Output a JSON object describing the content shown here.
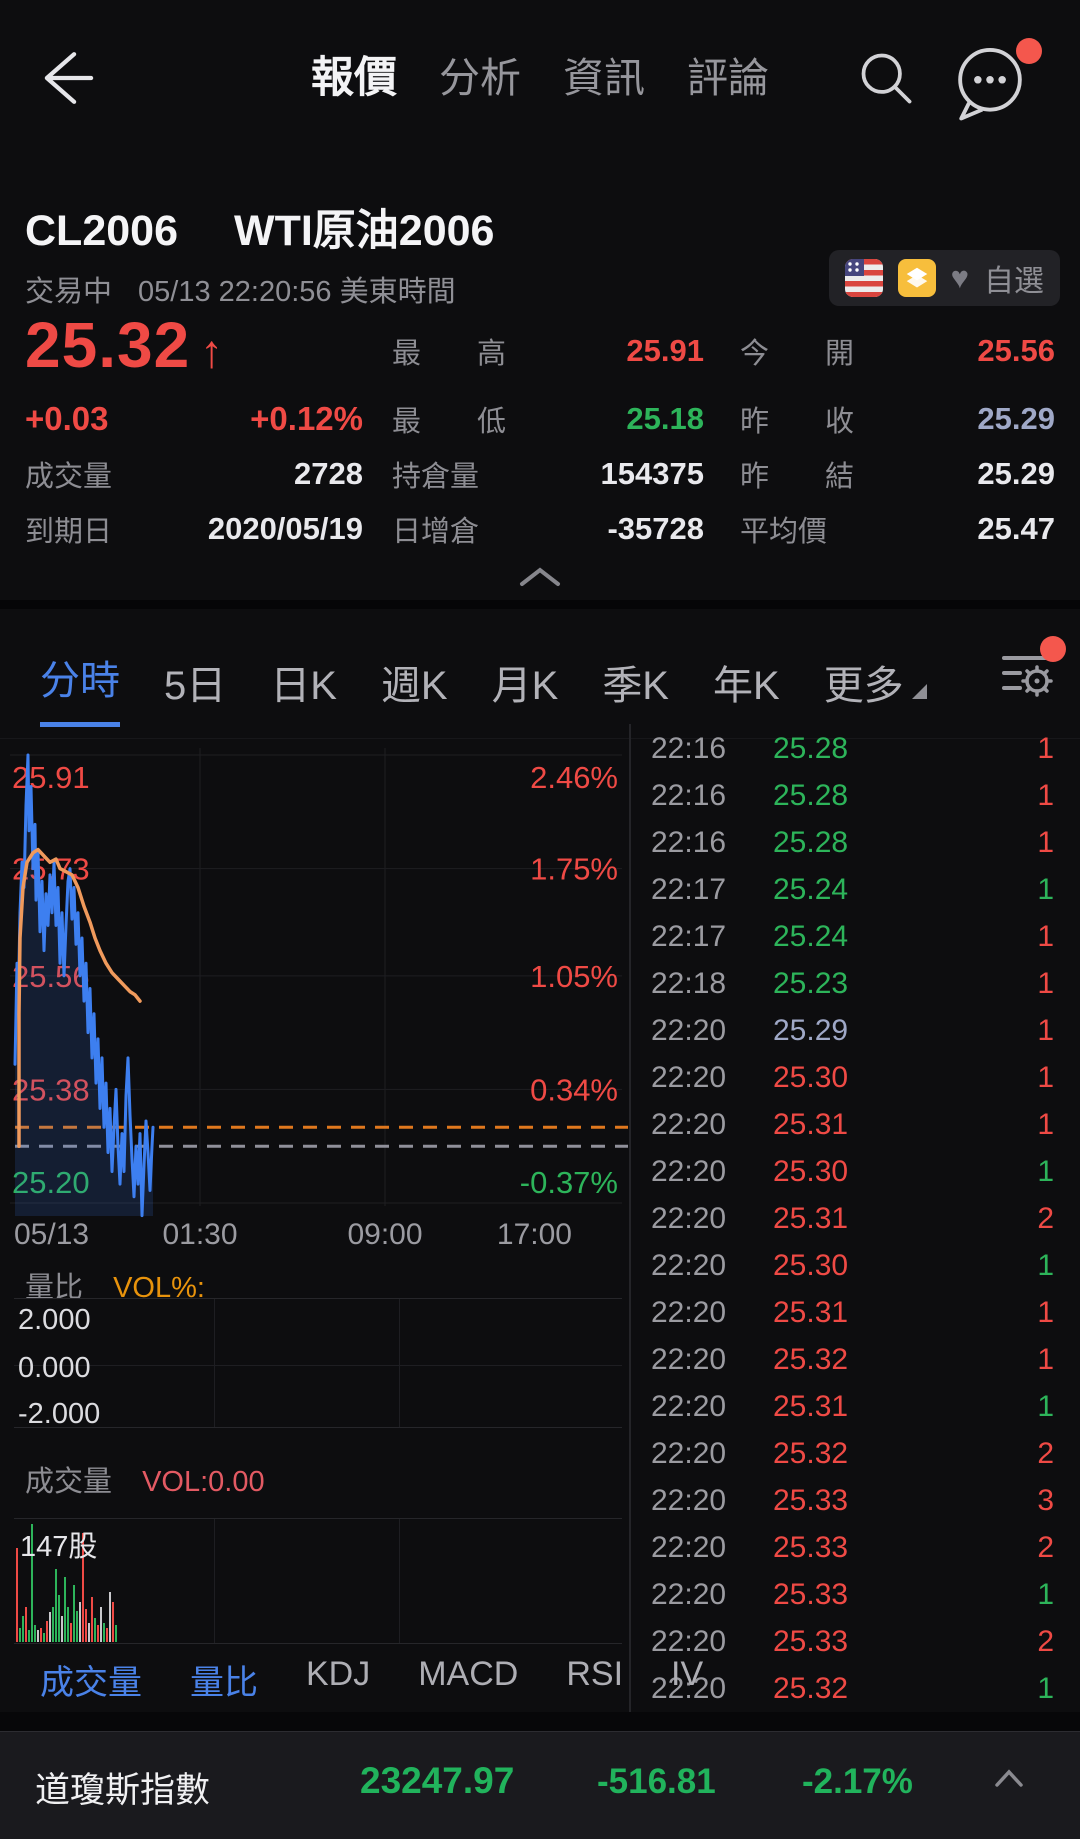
{
  "colors": {
    "r": "#ef4a45",
    "g": "#2db45a",
    "b": "#9fa8c7",
    "w": "#e9e9ed",
    "accent_blue": "#4a82e8",
    "orange": "#e8930c",
    "vol_red": "#e35a63",
    "price_line": "#3d7ff0",
    "avg_line": "#f09a5c",
    "dashed_orange": "#e0781e",
    "dashed_gray": "#90909a",
    "index_green": "#21b35c",
    "bar_gray": "#c8c8cc"
  },
  "header": {
    "tabs": [
      {
        "label": "報價",
        "active": true
      },
      {
        "label": "分析",
        "active": false
      },
      {
        "label": "資訊",
        "active": false
      },
      {
        "label": "評論",
        "active": false
      }
    ]
  },
  "title": {
    "code": "CL2006",
    "name": "WTI原油2006"
  },
  "status": {
    "state": "交易中",
    "datetime": "05/13 22:20:56 美東時間",
    "watchlist_label": "自選"
  },
  "quote": {
    "last": "25.32",
    "direction_icon": "↑",
    "change": "+0.03",
    "change_pct": "+0.12%",
    "fields": [
      {
        "col": 2,
        "row": 1,
        "label": "最高",
        "value": "25.91",
        "color": "r",
        "justify": true
      },
      {
        "col": 3,
        "row": 1,
        "label": "今開",
        "value": "25.56",
        "color": "r",
        "justify": true
      },
      {
        "col": 2,
        "row": 2,
        "label": "最低",
        "value": "25.18",
        "color": "g",
        "justify": true
      },
      {
        "col": 3,
        "row": 2,
        "label": "昨收",
        "value": "25.29",
        "color": "b",
        "justify": true
      },
      {
        "col": 1,
        "row": 3,
        "label": "成交量",
        "value": "2728",
        "color": "w",
        "justify": false
      },
      {
        "col": 2,
        "row": 3,
        "label": "持倉量",
        "value": "154375",
        "color": "w",
        "justify": false
      },
      {
        "col": 3,
        "row": 3,
        "label": "昨結",
        "value": "25.29",
        "color": "w",
        "justify": true
      },
      {
        "col": 1,
        "row": 4,
        "label": "到期日",
        "value": "2020/05/19",
        "color": "w",
        "justify": false
      },
      {
        "col": 2,
        "row": 4,
        "label": "日增倉",
        "value": "-35728",
        "color": "w",
        "justify": false
      },
      {
        "col": 3,
        "row": 4,
        "label": "平均價",
        "value": "25.47",
        "color": "w",
        "justify": false
      }
    ]
  },
  "chart_tabs": [
    {
      "label": "分時",
      "active": true,
      "caret": false
    },
    {
      "label": "5日",
      "active": false,
      "caret": false
    },
    {
      "label": "日K",
      "active": false,
      "caret": false
    },
    {
      "label": "週K",
      "active": false,
      "caret": false
    },
    {
      "label": "月K",
      "active": false,
      "caret": false
    },
    {
      "label": "季K",
      "active": false,
      "caret": false
    },
    {
      "label": "年K",
      "active": false,
      "caret": false
    },
    {
      "label": "更多",
      "active": false,
      "caret": true
    }
  ],
  "chart_data": [
    {
      "type": "line",
      "name": "intraday-price-chart",
      "x_axis": [
        "05/13",
        "01:30",
        "09:00",
        "17:00"
      ],
      "y_axis": [
        {
          "price": 25.91,
          "label": "25.91",
          "color": "r"
        },
        {
          "price": 25.73,
          "label": "25.73",
          "color": "r"
        },
        {
          "price": 25.56,
          "label": "25.56",
          "color": "r"
        },
        {
          "price": 25.38,
          "label": "25.38",
          "color": "r"
        },
        {
          "price": 25.2,
          "label": "25.20",
          "color": "g"
        }
      ],
      "right_axis": [
        {
          "label": "2.46%",
          "color": "r"
        },
        {
          "label": "1.75%",
          "color": "r"
        },
        {
          "label": "1.05%",
          "color": "r"
        },
        {
          "label": "0.34%",
          "color": "r"
        },
        {
          "label": "-0.37%",
          "color": "g"
        }
      ],
      "reference_lines": [
        {
          "price": 25.32,
          "meaning": "last-price",
          "colorKey": "dashed_orange"
        },
        {
          "price": 25.29,
          "meaning": "prev-settle",
          "colorKey": "dashed_gray"
        }
      ],
      "series": [
        {
          "name": "price",
          "colorKey": "price_line",
          "fill": true,
          "points": [
            [
              15,
              25.42
            ],
            [
              17,
              25.58
            ],
            [
              18,
              25.5
            ],
            [
              20,
              25.66
            ],
            [
              22,
              25.74
            ],
            [
              24,
              25.7
            ],
            [
              26,
              25.83
            ],
            [
              28,
              25.91
            ],
            [
              29,
              25.79
            ],
            [
              31,
              25.86
            ],
            [
              33,
              25.73
            ],
            [
              35,
              25.8
            ],
            [
              36,
              25.68
            ],
            [
              38,
              25.76
            ],
            [
              40,
              25.63
            ],
            [
              42,
              25.71
            ],
            [
              44,
              25.6
            ],
            [
              46,
              25.69
            ],
            [
              48,
              25.64
            ],
            [
              50,
              25.72
            ],
            [
              52,
              25.66
            ],
            [
              54,
              25.74
            ],
            [
              56,
              25.64
            ],
            [
              58,
              25.7
            ],
            [
              60,
              25.58
            ],
            [
              62,
              25.66
            ],
            [
              64,
              25.56
            ],
            [
              66,
              25.64
            ],
            [
              68,
              25.71
            ],
            [
              70,
              25.73
            ],
            [
              72,
              25.65
            ],
            [
              74,
              25.7
            ],
            [
              76,
              25.61
            ],
            [
              78,
              25.66
            ],
            [
              80,
              25.56
            ],
            [
              82,
              25.62
            ],
            [
              84,
              25.52
            ],
            [
              86,
              25.58
            ],
            [
              88,
              25.47
            ],
            [
              90,
              25.54
            ],
            [
              92,
              25.43
            ],
            [
              94,
              25.5
            ],
            [
              96,
              25.39
            ],
            [
              98,
              25.46
            ],
            [
              100,
              25.35
            ],
            [
              102,
              25.43
            ],
            [
              104,
              25.32
            ],
            [
              106,
              25.39
            ],
            [
              108,
              25.28
            ],
            [
              110,
              25.35
            ],
            [
              112,
              25.25
            ],
            [
              114,
              25.32
            ],
            [
              116,
              25.38
            ],
            [
              118,
              25.29
            ],
            [
              120,
              25.23
            ],
            [
              122,
              25.31
            ],
            [
              124,
              25.25
            ],
            [
              126,
              25.37
            ],
            [
              128,
              25.43
            ],
            [
              130,
              25.34
            ],
            [
              132,
              25.27
            ],
            [
              134,
              25.21
            ],
            [
              136,
              25.29
            ],
            [
              138,
              25.23
            ],
            [
              140,
              25.31
            ],
            [
              142,
              25.18
            ],
            [
              144,
              25.26
            ],
            [
              146,
              25.33
            ],
            [
              148,
              25.28
            ],
            [
              150,
              25.22
            ],
            [
              152,
              25.29
            ],
            [
              153,
              25.32
            ]
          ]
        },
        {
          "name": "average",
          "colorKey": "avg_line",
          "fill": false,
          "points": [
            [
              19,
              25.29
            ],
            [
              19,
              25.5
            ],
            [
              20,
              25.62
            ],
            [
              23,
              25.7
            ],
            [
              27,
              25.74
            ],
            [
              33,
              25.755
            ],
            [
              38,
              25.76
            ],
            [
              44,
              25.75
            ],
            [
              50,
              25.74
            ],
            [
              56,
              25.745
            ],
            [
              60,
              25.73
            ],
            [
              66,
              25.725
            ],
            [
              72,
              25.72
            ],
            [
              78,
              25.7
            ],
            [
              84,
              25.67
            ],
            [
              90,
              25.645
            ],
            [
              95,
              25.62
            ],
            [
              100,
              25.6
            ],
            [
              106,
              25.58
            ],
            [
              112,
              25.565
            ],
            [
              118,
              25.555
            ],
            [
              124,
              25.545
            ],
            [
              130,
              25.535
            ],
            [
              135,
              25.53
            ],
            [
              140,
              25.52
            ]
          ]
        }
      ]
    },
    {
      "type": "line",
      "name": "volume-ratio-panel",
      "title": "量比",
      "subtitle": "VOL%:",
      "y_ticks": [
        "2.000",
        "0.000",
        "-2.000"
      ],
      "series": []
    },
    {
      "type": "bar",
      "name": "volume-panel",
      "title": "成交量",
      "subtitle": "VOL:0.00",
      "max_label": "147股",
      "bars": [
        [
          "r",
          0.8
        ],
        [
          "g",
          0.12
        ],
        [
          "g",
          0.22
        ],
        [
          "r",
          0.3
        ],
        [
          "g",
          0.1
        ],
        [
          "g",
          1.0
        ],
        [
          "g",
          0.14
        ],
        [
          "w",
          0.1
        ],
        [
          "r",
          0.12
        ],
        [
          "g",
          0.08
        ],
        [
          "r",
          0.18
        ],
        [
          "w",
          0.25
        ],
        [
          "g",
          0.3
        ],
        [
          "g",
          0.62
        ],
        [
          "g",
          0.4
        ],
        [
          "w",
          0.22
        ],
        [
          "g",
          0.55
        ],
        [
          "g",
          0.3
        ],
        [
          "r",
          0.16
        ],
        [
          "g",
          0.48
        ],
        [
          "g",
          0.26
        ],
        [
          "w",
          0.34
        ],
        [
          "r",
          0.92
        ],
        [
          "r",
          0.28
        ],
        [
          "w",
          0.16
        ],
        [
          "r",
          0.38
        ],
        [
          "g",
          0.2
        ],
        [
          "r",
          0.14
        ],
        [
          "w",
          0.3
        ],
        [
          "g",
          0.16
        ],
        [
          "r",
          0.12
        ],
        [
          "w",
          0.42
        ],
        [
          "r",
          0.34
        ],
        [
          "g",
          0.14
        ]
      ]
    }
  ],
  "trades": [
    {
      "time": "22:16",
      "price": "25.28",
      "pc": "g",
      "vol": "1",
      "vc": "r"
    },
    {
      "time": "22:16",
      "price": "25.28",
      "pc": "g",
      "vol": "1",
      "vc": "r"
    },
    {
      "time": "22:16",
      "price": "25.28",
      "pc": "g",
      "vol": "1",
      "vc": "r"
    },
    {
      "time": "22:17",
      "price": "25.24",
      "pc": "g",
      "vol": "1",
      "vc": "g"
    },
    {
      "time": "22:17",
      "price": "25.24",
      "pc": "g",
      "vol": "1",
      "vc": "r"
    },
    {
      "time": "22:18",
      "price": "25.23",
      "pc": "g",
      "vol": "1",
      "vc": "r"
    },
    {
      "time": "22:20",
      "price": "25.29",
      "pc": "b",
      "vol": "1",
      "vc": "r"
    },
    {
      "time": "22:20",
      "price": "25.30",
      "pc": "r",
      "vol": "1",
      "vc": "r"
    },
    {
      "time": "22:20",
      "price": "25.31",
      "pc": "r",
      "vol": "1",
      "vc": "r"
    },
    {
      "time": "22:20",
      "price": "25.30",
      "pc": "r",
      "vol": "1",
      "vc": "g"
    },
    {
      "time": "22:20",
      "price": "25.31",
      "pc": "r",
      "vol": "2",
      "vc": "r"
    },
    {
      "time": "22:20",
      "price": "25.30",
      "pc": "r",
      "vol": "1",
      "vc": "g"
    },
    {
      "time": "22:20",
      "price": "25.31",
      "pc": "r",
      "vol": "1",
      "vc": "r"
    },
    {
      "time": "22:20",
      "price": "25.32",
      "pc": "r",
      "vol": "1",
      "vc": "r"
    },
    {
      "time": "22:20",
      "price": "25.31",
      "pc": "r",
      "vol": "1",
      "vc": "g"
    },
    {
      "time": "22:20",
      "price": "25.32",
      "pc": "r",
      "vol": "2",
      "vc": "r"
    },
    {
      "time": "22:20",
      "price": "25.33",
      "pc": "r",
      "vol": "3",
      "vc": "r"
    },
    {
      "time": "22:20",
      "price": "25.33",
      "pc": "r",
      "vol": "2",
      "vc": "r"
    },
    {
      "time": "22:20",
      "price": "25.33",
      "pc": "r",
      "vol": "1",
      "vc": "g"
    },
    {
      "time": "22:20",
      "price": "25.33",
      "pc": "r",
      "vol": "2",
      "vc": "r"
    },
    {
      "time": "22:20",
      "price": "25.32",
      "pc": "r",
      "vol": "1",
      "vc": "g"
    }
  ],
  "indicator_tabs": [
    {
      "label": "成交量",
      "active": true
    },
    {
      "label": "量比",
      "active": true
    },
    {
      "label": "KDJ",
      "active": false
    },
    {
      "label": "MACD",
      "active": false
    },
    {
      "label": "RSI",
      "active": false
    },
    {
      "label": "IV",
      "active": false
    }
  ],
  "index_bar": {
    "name": "道瓊斯指數",
    "value": "23247.97",
    "change": "-516.81",
    "pct": "-2.17%"
  }
}
